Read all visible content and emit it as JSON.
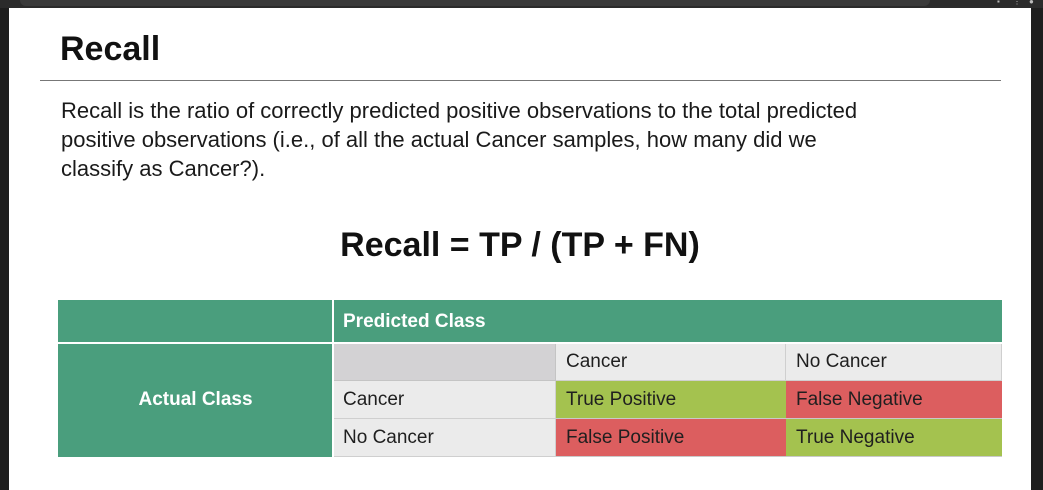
{
  "slide": {
    "title": "Recall",
    "description": "Recall is the ratio of correctly predicted positive observations to the total predicted positive observations (i.e., of all the actual Cancer samples, how many did we classify as Cancer?).",
    "formula": "Recall = TP / (TP + FN)"
  },
  "matrix": {
    "predicted_header": "Predicted Class",
    "actual_header": "Actual Class",
    "col_headers": [
      "Cancer",
      "No Cancer"
    ],
    "rows": [
      {
        "label": "Cancer",
        "cells": [
          "True Positive",
          "False Negative"
        ]
      },
      {
        "label": "No Cancer",
        "cells": [
          "False Positive",
          "True Negative"
        ]
      }
    ]
  },
  "colors": {
    "header_green": "#4a9e7d",
    "positive_green": "#a4c24f",
    "negative_red": "#dc5e5f"
  }
}
